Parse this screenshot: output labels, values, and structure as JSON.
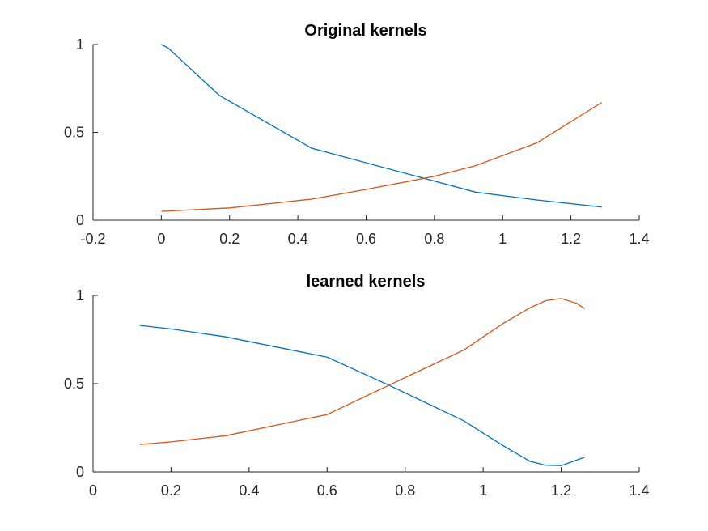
{
  "chart_data": [
    {
      "type": "line",
      "title": "Original kernels",
      "xlabel": "",
      "ylabel": "",
      "xlim": [
        -0.2,
        1.4
      ],
      "ylim": [
        0,
        1
      ],
      "xticks": [
        -0.2,
        0,
        0.2,
        0.4,
        0.6,
        0.8,
        1,
        1.2,
        1.4
      ],
      "xtick_labels": [
        "-0.2",
        "0",
        "0.2",
        "0.4",
        "0.6",
        "0.8",
        "1",
        "1.2",
        "1.4"
      ],
      "yticks": [
        0,
        0.5,
        1
      ],
      "ytick_labels": [
        "0",
        "0.5",
        "1"
      ],
      "grid": false,
      "series": [
        {
          "color": "#0072BD",
          "points": [
            [
              0,
              1.0
            ],
            [
              0.02,
              0.98
            ],
            [
              0.17,
              0.71
            ],
            [
              0.44,
              0.41
            ],
            [
              0.92,
              0.16
            ],
            [
              1.1,
              0.115
            ],
            [
              1.29,
              0.075
            ]
          ]
        },
        {
          "color": "#D95319",
          "points": [
            [
              0,
              0.05
            ],
            [
              0.2,
              0.07
            ],
            [
              0.44,
              0.12
            ],
            [
              0.6,
              0.175
            ],
            [
              0.8,
              0.25
            ],
            [
              0.92,
              0.31
            ],
            [
              1.1,
              0.44
            ],
            [
              1.29,
              0.67
            ]
          ]
        }
      ]
    },
    {
      "type": "line",
      "title": "learned kernels",
      "xlabel": "",
      "ylabel": "",
      "xlim": [
        0,
        1.4
      ],
      "ylim": [
        0,
        1
      ],
      "xticks": [
        0,
        0.2,
        0.4,
        0.6,
        0.8,
        1,
        1.2,
        1.4
      ],
      "xtick_labels": [
        "0",
        "0.2",
        "0.4",
        "0.6",
        "0.8",
        "1",
        "1.2",
        "1.4"
      ],
      "yticks": [
        0,
        0.5,
        1
      ],
      "ytick_labels": [
        "0",
        "0.5",
        "1"
      ],
      "grid": false,
      "series": [
        {
          "color": "#0072BD",
          "points": [
            [
              0.12,
              0.83
            ],
            [
              0.2,
              0.81
            ],
            [
              0.34,
              0.765
            ],
            [
              0.6,
              0.65
            ],
            [
              0.76,
              0.49
            ],
            [
              0.95,
              0.29
            ],
            [
              1.05,
              0.15
            ],
            [
              1.12,
              0.06
            ],
            [
              1.16,
              0.038
            ],
            [
              1.2,
              0.036
            ],
            [
              1.26,
              0.083
            ]
          ]
        },
        {
          "color": "#D95319",
          "points": [
            [
              0.12,
              0.155
            ],
            [
              0.2,
              0.17
            ],
            [
              0.34,
              0.205
            ],
            [
              0.6,
              0.325
            ],
            [
              0.8,
              0.535
            ],
            [
              0.95,
              0.69
            ],
            [
              1.05,
              0.84
            ],
            [
              1.12,
              0.93
            ],
            [
              1.16,
              0.97
            ],
            [
              1.2,
              0.982
            ],
            [
              1.24,
              0.955
            ],
            [
              1.26,
              0.925
            ]
          ]
        }
      ]
    }
  ]
}
